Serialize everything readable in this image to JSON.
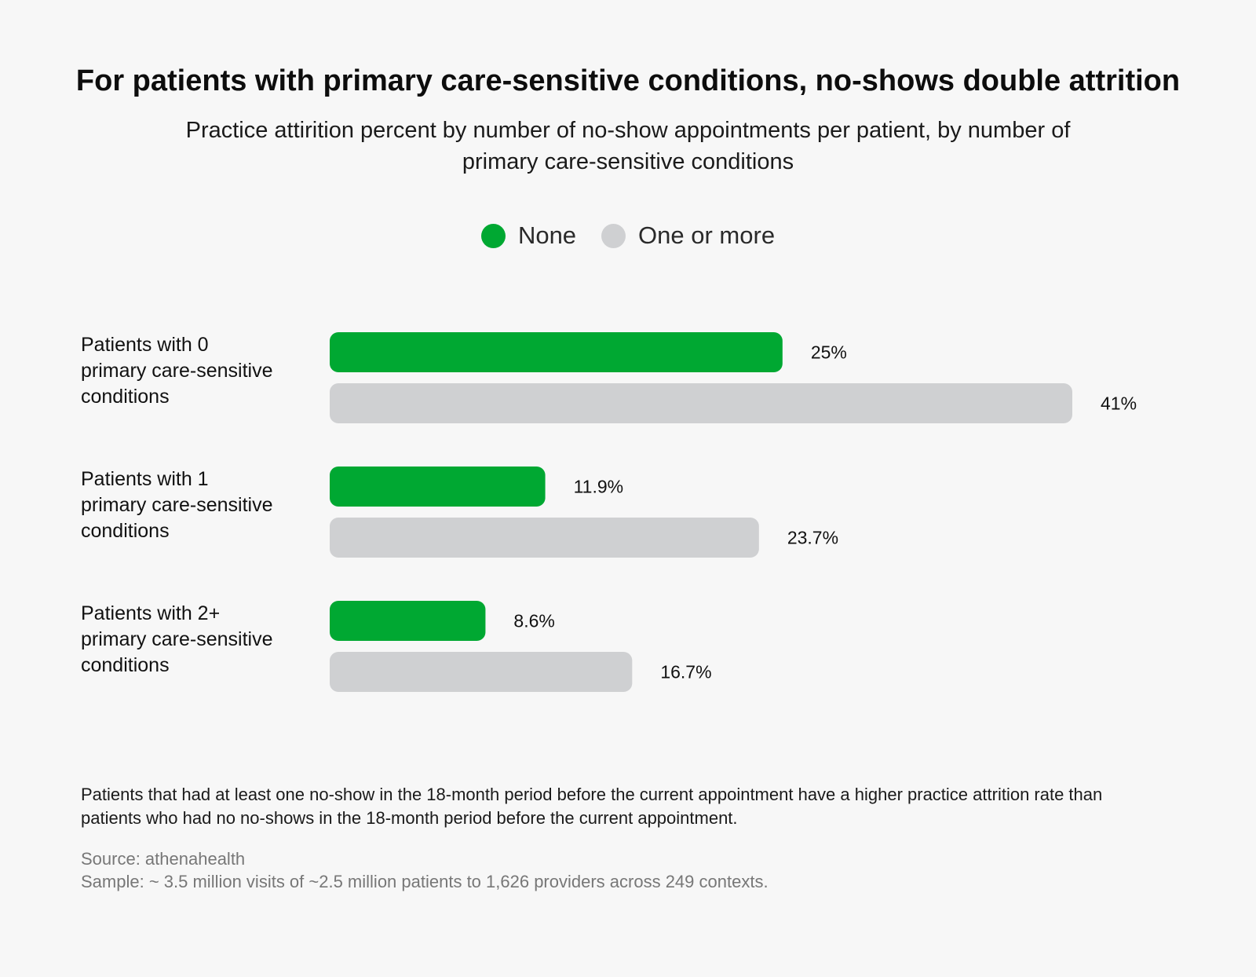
{
  "title": "For patients with primary care-sensitive conditions, no-shows double attrition",
  "subtitle": "Practice attirition percent by number of no-show appointments per patient, by number of primary care-sensitive conditions",
  "legend": [
    {
      "label": "None",
      "color": "#00a832"
    },
    {
      "label": "One or more",
      "color": "#cfd0d2"
    }
  ],
  "chart_data": {
    "type": "bar",
    "orientation": "horizontal",
    "categories": [
      "Patients with 0 primary care-sensitive conditions",
      "Patients with 1 primary care-sensitive conditions",
      "Patients with 2+ primary care-sensitive conditions"
    ],
    "category_lines": [
      [
        "Patients with 0",
        "primary care-sensitive",
        "conditions"
      ],
      [
        "Patients with 1",
        "primary care-sensitive",
        "conditions"
      ],
      [
        "Patients with 2+",
        "primary care-sensitive",
        "conditions"
      ]
    ],
    "series": [
      {
        "name": "None",
        "color": "#00a832",
        "values": [
          25,
          11.9,
          8.6
        ],
        "labels": [
          "25%",
          "11.9%",
          "8.6%"
        ]
      },
      {
        "name": "One or more",
        "color": "#cfd0d2",
        "values": [
          41,
          23.7,
          16.7
        ],
        "labels": [
          "41%",
          "23.7%",
          "16.7%"
        ]
      }
    ],
    "xlim": [
      0,
      41
    ],
    "grid": false,
    "legend_position": "top-center"
  },
  "footnote": "Patients that had at least one no-show in the 18-month period before the current appointment have a higher practice attrition rate than patients who had no no-shows in the 18-month period before the current appointment.",
  "source_lines": [
    "Source: athenahealth",
    "Sample: ~ 3.5 million visits of ~2.5 million patients to 1,626 providers across 249 contexts."
  ]
}
